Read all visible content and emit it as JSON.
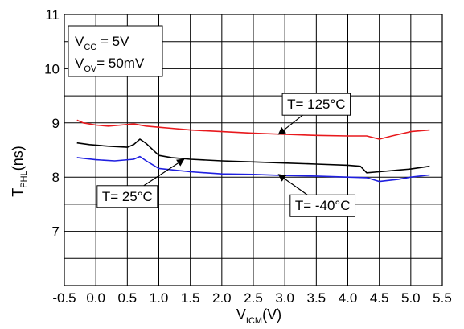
{
  "chart_data": {
    "type": "line",
    "xlim": [
      -0.5,
      5.5
    ],
    "ylim": [
      6,
      11
    ],
    "x_ticks": [
      "-0.5",
      "0.0",
      "0.5",
      "1.0",
      "1.5",
      "2.0",
      "2.5",
      "3.0",
      "3.5",
      "4.0",
      "4.5",
      "5.0",
      "5.5"
    ],
    "y_ticks": [
      "7",
      "8",
      "9",
      "10",
      "11"
    ],
    "grid": true,
    "xlabel": {
      "main": "V",
      "sub": "ICM",
      "unit": "(V)"
    },
    "ylabel": {
      "main": "T",
      "sub": "PHL",
      "unit": "(ns)"
    },
    "conditions": [
      {
        "main": "V",
        "sub": "CC",
        "value": " = 5V"
      },
      {
        "main": "V",
        "sub": "OV",
        "value": "= 50mV"
      }
    ],
    "series": [
      {
        "label": "T= 125°C",
        "color": "#e8191d",
        "points": [
          [
            -0.3,
            9.05
          ],
          [
            -0.2,
            9.0
          ],
          [
            0.0,
            8.96
          ],
          [
            0.2,
            8.94
          ],
          [
            0.4,
            8.96
          ],
          [
            0.6,
            8.98
          ],
          [
            0.8,
            8.94
          ],
          [
            1.0,
            8.92
          ],
          [
            1.2,
            8.9
          ],
          [
            1.5,
            8.87
          ],
          [
            2.0,
            8.84
          ],
          [
            2.5,
            8.81
          ],
          [
            3.0,
            8.79
          ],
          [
            3.5,
            8.77
          ],
          [
            4.0,
            8.76
          ],
          [
            4.3,
            8.76
          ],
          [
            4.5,
            8.7
          ],
          [
            4.7,
            8.76
          ],
          [
            5.0,
            8.84
          ],
          [
            5.3,
            8.87
          ]
        ]
      },
      {
        "label": "T= 25°C",
        "color": "#000000",
        "points": [
          [
            -0.3,
            8.63
          ],
          [
            -0.1,
            8.6
          ],
          [
            0.2,
            8.57
          ],
          [
            0.5,
            8.55
          ],
          [
            0.6,
            8.6
          ],
          [
            0.7,
            8.7
          ],
          [
            0.8,
            8.62
          ],
          [
            1.0,
            8.4
          ],
          [
            1.2,
            8.36
          ],
          [
            1.5,
            8.33
          ],
          [
            2.0,
            8.3
          ],
          [
            2.5,
            8.28
          ],
          [
            3.0,
            8.26
          ],
          [
            3.5,
            8.24
          ],
          [
            4.0,
            8.22
          ],
          [
            4.2,
            8.2
          ],
          [
            4.3,
            8.08
          ],
          [
            4.5,
            8.1
          ],
          [
            4.8,
            8.13
          ],
          [
            5.0,
            8.15
          ],
          [
            5.3,
            8.2
          ]
        ]
      },
      {
        "label": "T= -40°C",
        "color": "#1f1fe0",
        "points": [
          [
            -0.3,
            8.36
          ],
          [
            0.0,
            8.32
          ],
          [
            0.3,
            8.3
          ],
          [
            0.6,
            8.33
          ],
          [
            0.7,
            8.38
          ],
          [
            0.8,
            8.3
          ],
          [
            1.0,
            8.16
          ],
          [
            1.5,
            8.1
          ],
          [
            2.0,
            8.06
          ],
          [
            2.5,
            8.05
          ],
          [
            3.0,
            8.03
          ],
          [
            3.5,
            8.02
          ],
          [
            4.0,
            8.0
          ],
          [
            4.3,
            7.99
          ],
          [
            4.5,
            7.92
          ],
          [
            4.8,
            7.96
          ],
          [
            5.0,
            8.0
          ],
          [
            5.3,
            8.04
          ]
        ]
      }
    ],
    "annotations": [
      {
        "label": "T= 125°C",
        "text_x": 3.5,
        "text_y": 9.35,
        "arrow_to": [
          2.9,
          8.79
        ]
      },
      {
        "label": "T= 25°C",
        "text_x": 0.5,
        "text_y": 7.65,
        "arrow_to": [
          1.4,
          8.33
        ]
      },
      {
        "label": "T= -40°C",
        "text_x": 3.6,
        "text_y": 7.48,
        "arrow_to": [
          2.9,
          8.05
        ]
      }
    ]
  }
}
